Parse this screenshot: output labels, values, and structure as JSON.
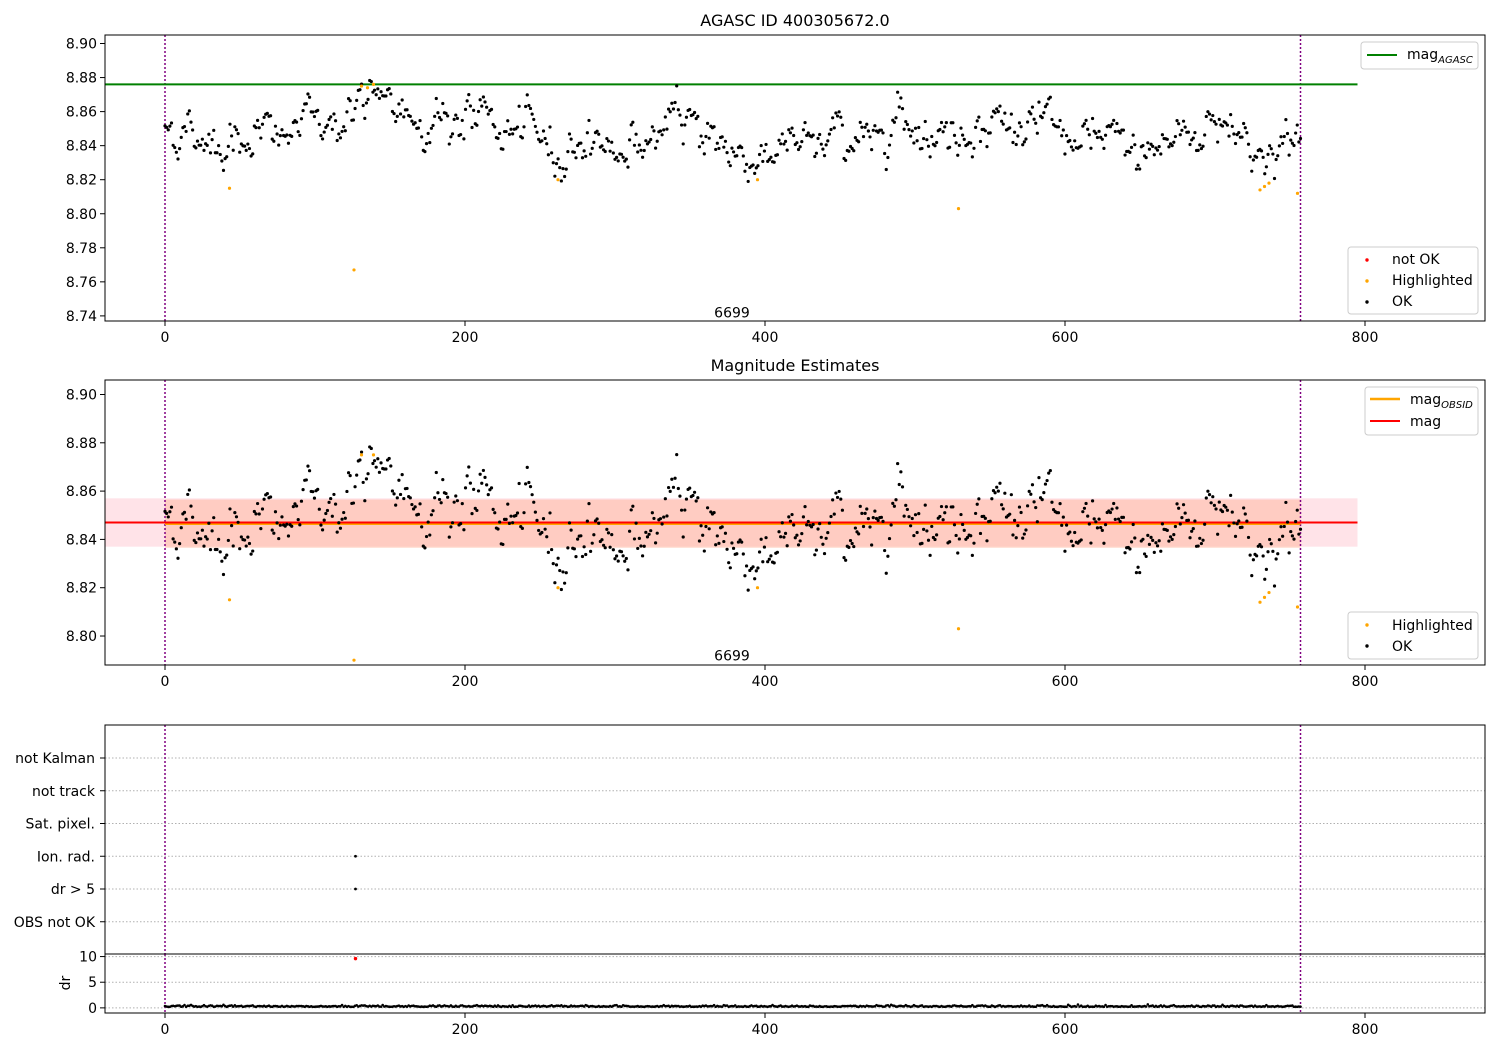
{
  "colors": {
    "ok": "#000000",
    "highlighted": "#ffa500",
    "not_ok": "#ff0000",
    "agasc_line": "#008000",
    "obsid_line": "#ffa500",
    "mag_line": "#ff0000",
    "mag_band": "#ffc0cb",
    "obsid_band": "#ffa07a",
    "boundary": "#800080"
  },
  "chart_data": [
    {
      "type": "scatter",
      "title": "AGASC ID 400305672.0",
      "xlim": [
        -40,
        880
      ],
      "ylim": [
        8.737,
        8.905
      ],
      "x_ticks": [
        0,
        200,
        400,
        600,
        800
      ],
      "y_ticks": [
        8.74,
        8.76,
        8.78,
        8.8,
        8.82,
        8.84,
        8.86,
        8.88,
        8.9
      ],
      "y_tick_labels": [
        "8.74",
        "8.76",
        "8.78",
        "8.80",
        "8.82",
        "8.84",
        "8.86",
        "8.88",
        "8.90"
      ],
      "boundaries": [
        0,
        757
      ],
      "annotation": {
        "text": "6699",
        "x": 378,
        "y": 8.742
      },
      "reference_lines": [
        {
          "name": "mag_AGASC",
          "y": 8.876,
          "x_range": [
            -40,
            795
          ]
        }
      ],
      "highlighted": [
        [
          43,
          8.815
        ],
        [
          131,
          8.875
        ],
        [
          135,
          8.874
        ],
        [
          139,
          8.876
        ],
        [
          126,
          8.767
        ],
        [
          262,
          8.82
        ],
        [
          395,
          8.82
        ],
        [
          529,
          8.803
        ],
        [
          730,
          8.814
        ],
        [
          733,
          8.816
        ],
        [
          736,
          8.818
        ],
        [
          755,
          8.812
        ]
      ],
      "ok_trend": [
        [
          0,
          8.851
        ],
        [
          20,
          8.846
        ],
        [
          40,
          8.842
        ],
        [
          60,
          8.848
        ],
        [
          80,
          8.844
        ],
        [
          100,
          8.858
        ],
        [
          115,
          8.852
        ],
        [
          130,
          8.866
        ],
        [
          150,
          8.862
        ],
        [
          170,
          8.857
        ],
        [
          190,
          8.854
        ],
        [
          210,
          8.858
        ],
        [
          230,
          8.846
        ],
        [
          250,
          8.848
        ],
        [
          262,
          8.832
        ],
        [
          280,
          8.846
        ],
        [
          300,
          8.838
        ],
        [
          320,
          8.842
        ],
        [
          340,
          8.852
        ],
        [
          355,
          8.856
        ],
        [
          370,
          8.84
        ],
        [
          390,
          8.832
        ],
        [
          410,
          8.84
        ],
        [
          430,
          8.838
        ],
        [
          450,
          8.848
        ],
        [
          470,
          8.842
        ],
        [
          490,
          8.862
        ],
        [
          510,
          8.846
        ],
        [
          530,
          8.848
        ],
        [
          550,
          8.855
        ],
        [
          570,
          8.85
        ],
        [
          590,
          8.852
        ],
        [
          610,
          8.838
        ],
        [
          630,
          8.845
        ],
        [
          650,
          8.836
        ],
        [
          670,
          8.843
        ],
        [
          690,
          8.85
        ],
        [
          710,
          8.856
        ],
        [
          725,
          8.838
        ],
        [
          740,
          8.834
        ],
        [
          757,
          8.843
        ]
      ],
      "ok_count": 700,
      "ok_spread": 0.009,
      "legend": {
        "position": "lower-right",
        "entries": [
          "not OK",
          "Highlighted",
          "OK"
        ]
      },
      "line_legend": {
        "position": "upper-right",
        "entries": [
          {
            "label": "mag",
            "sub": "AGASC"
          }
        ]
      }
    },
    {
      "type": "scatter",
      "title": "Magnitude Estimates",
      "xlim": [
        -40,
        880
      ],
      "ylim": [
        8.788,
        8.906
      ],
      "x_ticks": [
        0,
        200,
        400,
        600,
        800
      ],
      "y_ticks": [
        8.8,
        8.82,
        8.84,
        8.86,
        8.88,
        8.9
      ],
      "y_tick_labels": [
        "8.80",
        "8.82",
        "8.84",
        "8.86",
        "8.88",
        "8.90"
      ],
      "boundaries": [
        0,
        757
      ],
      "annotation": {
        "text": "6699",
        "x": 378,
        "y": 8.792
      },
      "mag_line": {
        "name": "mag",
        "y": 8.847,
        "band": [
          8.837,
          8.857
        ],
        "x_range": [
          -40,
          795
        ]
      },
      "obsid_line": {
        "name": "mag_OBSID",
        "y": 8.8465,
        "band": [
          8.8365,
          8.8565
        ],
        "x_range": [
          0,
          757
        ]
      },
      "highlighted": [
        [
          43,
          8.815
        ],
        [
          131,
          8.875
        ],
        [
          139,
          8.875
        ],
        [
          126,
          8.79
        ],
        [
          262,
          8.82
        ],
        [
          395,
          8.82
        ],
        [
          529,
          8.803
        ],
        [
          730,
          8.814
        ],
        [
          733,
          8.816
        ],
        [
          736,
          8.818
        ],
        [
          755,
          8.812
        ]
      ],
      "legend": {
        "position": "lower-right",
        "entries": [
          "Highlighted",
          "OK"
        ]
      },
      "line_legend": {
        "position": "upper-right",
        "entries": [
          {
            "label": "mag",
            "sub": "OBSID"
          },
          {
            "label": "mag",
            "sub": ""
          }
        ]
      }
    },
    {
      "type": "scatter",
      "flags": [
        "not Kalman",
        "not track",
        "Sat. pixel.",
        "Ion. rad.",
        "dr > 5",
        "OBS not OK"
      ],
      "xlim": [
        -40,
        880
      ],
      "boundaries": [
        0,
        757
      ],
      "flag_points": [
        {
          "flag": "Ion. rad.",
          "x": 127
        },
        {
          "flag": "dr > 5",
          "x": 127
        }
      ],
      "dr": {
        "ylabel": "dr",
        "ylim": [
          -1,
          10.5
        ],
        "y_ticks": [
          0,
          5,
          10
        ],
        "y_tick_labels": [
          "0",
          "5",
          "10"
        ],
        "x_ticks": [
          0,
          200,
          400,
          600,
          800
        ],
        "not_ok_points": [
          [
            127,
            9.6
          ]
        ],
        "baseline": 0.2
      }
    }
  ]
}
